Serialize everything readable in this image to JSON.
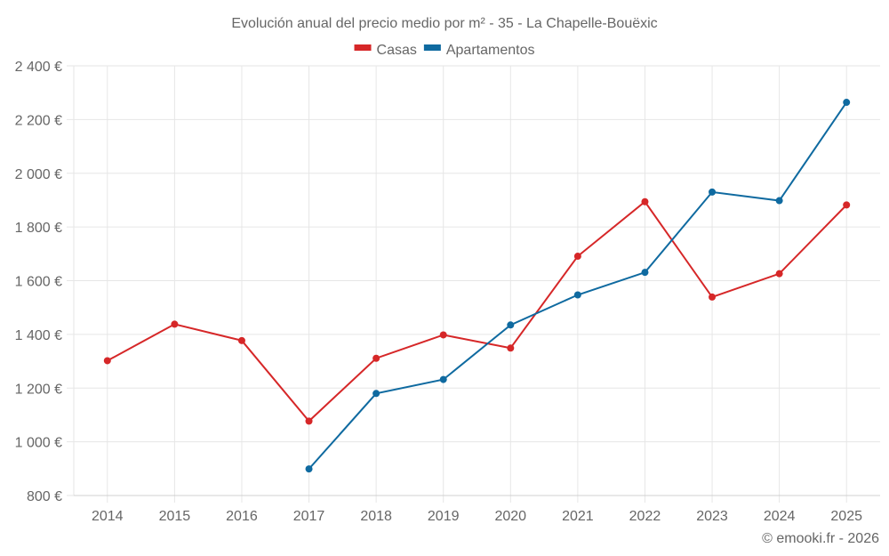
{
  "chart_data": {
    "type": "line",
    "title": "Evolución anual del precio medio por m² - 35 - La Chapelle-Bouëxic",
    "xlabel": "",
    "ylabel": "",
    "categories": [
      "2014",
      "2015",
      "2016",
      "2017",
      "2018",
      "2019",
      "2020",
      "2021",
      "2022",
      "2023",
      "2024",
      "2025"
    ],
    "ylim": [
      800,
      2400
    ],
    "yticks": [
      800,
      1000,
      1200,
      1400,
      1600,
      1800,
      2000,
      2200,
      2400
    ],
    "ytick_labels": [
      "800 €",
      "1 000 €",
      "1 200 €",
      "1 400 €",
      "1 600 €",
      "1 800 €",
      "2 000 €",
      "2 200 €",
      "2 400 €"
    ],
    "grid": true,
    "legend_position": "top-center",
    "series": [
      {
        "name": "Casas",
        "color": "#d62728",
        "values": [
          1302,
          1438,
          1377,
          1077,
          1311,
          1398,
          1349,
          1691,
          1894,
          1539,
          1626,
          1882
        ]
      },
      {
        "name": "Apartamentos",
        "color": "#0f6aa0",
        "values": [
          null,
          null,
          null,
          899,
          1180,
          1232,
          1435,
          1547,
          1631,
          1930,
          1898,
          2264
        ]
      }
    ]
  },
  "footer": "© emooki.fr - 2026"
}
